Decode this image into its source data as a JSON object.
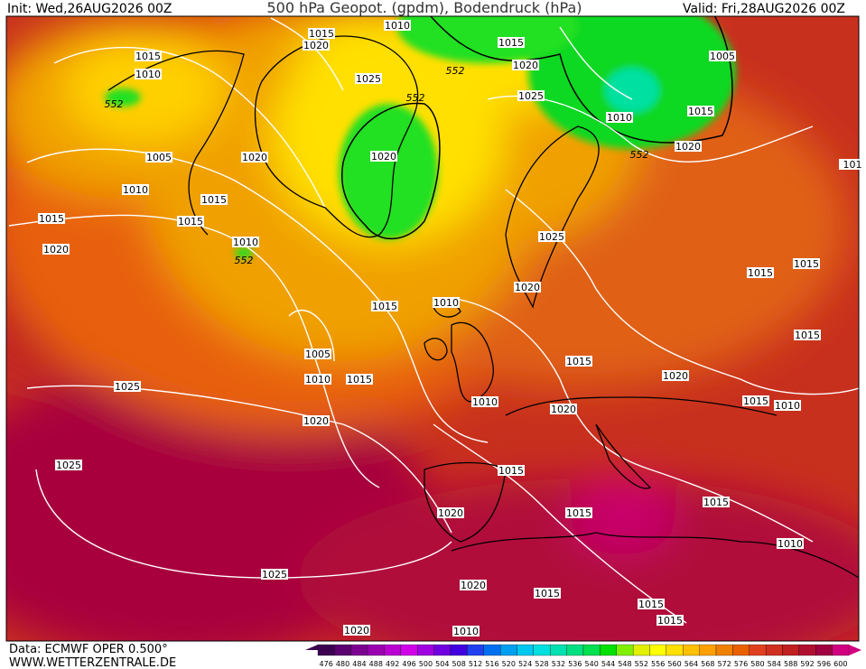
{
  "header": {
    "init": "Init: Wed,26AUG2026 00Z",
    "title": "500 hPa Geopot. (gpdm), Bodendruck (hPa)",
    "valid": "Valid: Fri,28AUG2026 00Z"
  },
  "footer": {
    "source": "Data: ECMWF OPER 0.500°",
    "site": "WWW.WETTERZENTRALE.DE"
  },
  "isobar_labels": [
    "1015",
    "1020",
    "1010",
    "1015",
    "1020",
    "1005",
    "1010",
    "1015",
    "1025",
    "1025",
    "1015",
    "1010",
    "1020",
    "1005",
    "1020",
    "1020",
    "1010",
    "1015",
    "1015",
    "1015",
    "1020",
    "1010",
    "1025",
    "1015",
    "1015",
    "1020",
    "1015",
    "1010",
    "1005",
    "1010",
    "1015",
    "1015",
    "1020",
    "1015",
    "1025",
    "1010",
    "1020",
    "1015",
    "1010",
    "1020",
    "1025",
    "1015",
    "1015",
    "1020",
    "1015",
    "1010",
    "1025",
    "1020",
    "1015",
    "1015",
    "1015",
    "1020",
    "1010",
    "101"
  ],
  "geopotential_labels": [
    "552",
    "552",
    "552",
    "552",
    "552"
  ],
  "scale": {
    "values": [
      476,
      480,
      484,
      488,
      492,
      496,
      500,
      504,
      508,
      512,
      516,
      520,
      524,
      528,
      532,
      536,
      540,
      544,
      548,
      552,
      556,
      560,
      564,
      568,
      572,
      576,
      580,
      584,
      588,
      592,
      596,
      600
    ],
    "colors": [
      "#3c0050",
      "#5a0070",
      "#7a0090",
      "#9a00b0",
      "#b800d0",
      "#d000e8",
      "#a000e0",
      "#7000e0",
      "#4000e0",
      "#2040f0",
      "#0070f0",
      "#00a0f0",
      "#00c8f0",
      "#00e0e0",
      "#00e0b0",
      "#00e080",
      "#00e050",
      "#00e000",
      "#80f000",
      "#e0f000",
      "#ffff00",
      "#ffe000",
      "#ffc000",
      "#ffa000",
      "#f08000",
      "#e86000",
      "#e04020",
      "#d03020",
      "#c02020",
      "#b01030",
      "#a00040",
      "#d00080"
    ]
  }
}
